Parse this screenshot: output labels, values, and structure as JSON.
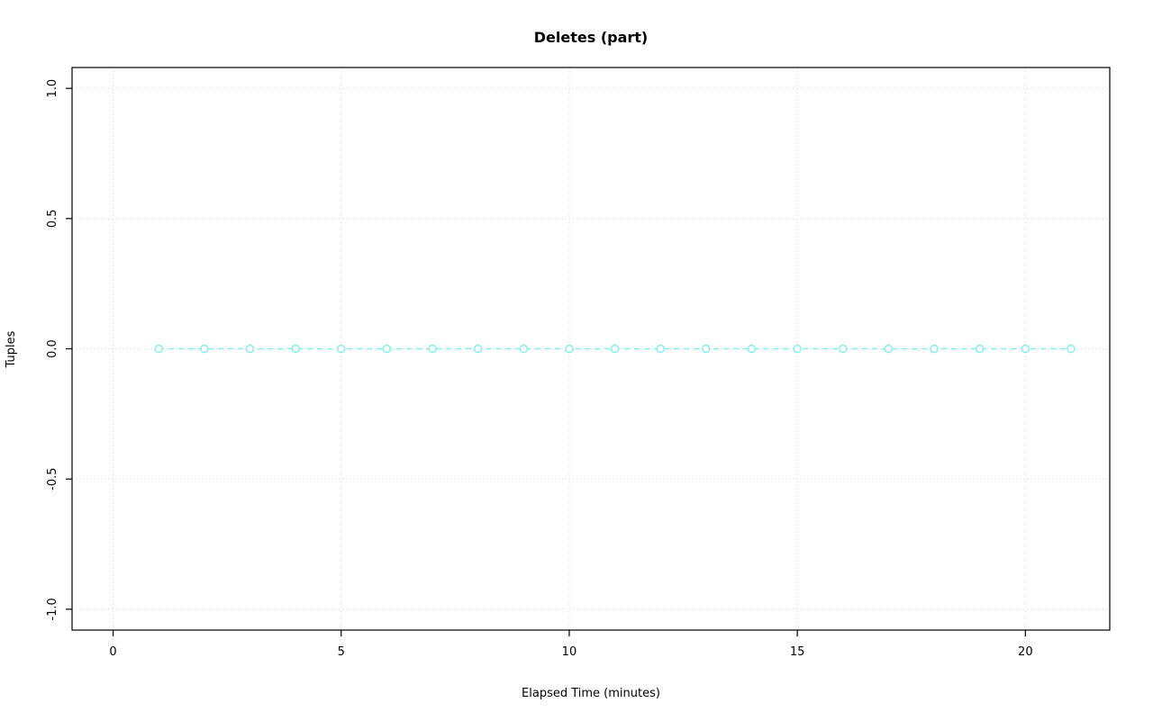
{
  "chart": {
    "title": "Deletes (part)",
    "xlabel": "Elapsed Time (minutes)",
    "ylabel": "Tuples"
  },
  "chart_data": {
    "type": "line",
    "title": "Deletes (part)",
    "xlabel": "Elapsed Time (minutes)",
    "ylabel": "Tuples",
    "x": [
      1,
      2,
      3,
      4,
      5,
      6,
      7,
      8,
      9,
      10,
      11,
      12,
      13,
      14,
      15,
      16,
      17,
      18,
      19,
      20,
      21
    ],
    "y": [
      0,
      0,
      0,
      0,
      0,
      0,
      0,
      0,
      0,
      0,
      0,
      0,
      0,
      0,
      0,
      0,
      0,
      0,
      0,
      0,
      0
    ],
    "xlim": [
      -0.9,
      21.85
    ],
    "ylim": [
      -1.08,
      1.08
    ],
    "xtick_values": [
      0,
      5,
      10,
      15,
      20
    ],
    "xtick_labels": [
      "0",
      "5",
      "10",
      "15",
      "20"
    ],
    "ytick_values": [
      -1.0,
      -0.5,
      0.0,
      0.5,
      1.0
    ],
    "ytick_labels": [
      "-1.0",
      "-0.5",
      "0.0",
      "0.5",
      "1.0"
    ],
    "grid": true,
    "legend_position": "none",
    "marker": "open-circle",
    "line_style": "dashed",
    "series_name": "Deletes",
    "series_color": "#82efef",
    "grid_color": "#d9d9d9",
    "axis_color": "#000000",
    "background_color": "#ffffff"
  }
}
